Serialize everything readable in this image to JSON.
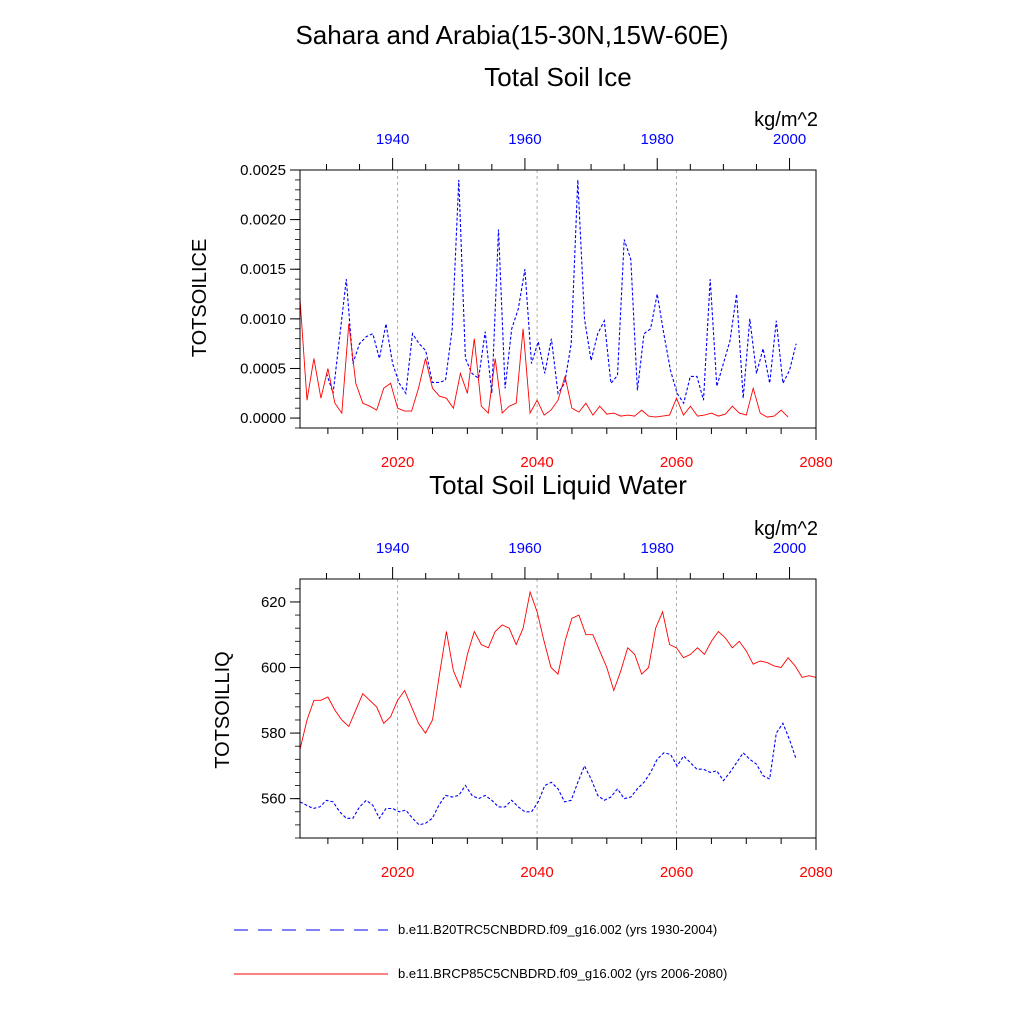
{
  "title": "Sahara and Arabia(15-30N,15W-60E)",
  "colors": {
    "blue": "#0000ff",
    "red": "#ff0000",
    "grid": "#9a9a9a"
  },
  "legend": [
    {
      "label": "b.e11.B20TRC5CNBDRD.f09_g16.002 (yrs 1930-2004)",
      "color": "#0000ff",
      "style": "dashed"
    },
    {
      "label": "b.e11.BRCP85C5CNBDRD.f09_g16.002 (yrs 2006-2080)",
      "color": "#ff0000",
      "style": "solid"
    }
  ],
  "chart_data": [
    {
      "type": "line",
      "title": "Total Soil Ice",
      "units": "kg/m^2",
      "ylabel": "TOTSOILICE",
      "ylim": [
        -0.0001,
        0.0025
      ],
      "yticks": [
        0.0,
        0.0005,
        0.001,
        0.0015,
        0.002,
        0.0025
      ],
      "ytick_labels": [
        "0.0000",
        "0.0005",
        "0.0010",
        "0.0015",
        "0.0020",
        "0.0025"
      ],
      "top_axis": {
        "range": [
          1926,
          2004
        ],
        "ticks": [
          1940,
          1960,
          1980,
          2000
        ],
        "labels": [
          "1940",
          "1960",
          "1980",
          "2000"
        ],
        "color": "#0000ff"
      },
      "bottom_axis": {
        "range": [
          2006,
          2080
        ],
        "ticks": [
          2020,
          2040,
          2060,
          2080
        ],
        "labels": [
          "2020",
          "2040",
          "2060",
          "2080"
        ],
        "color": "#ff0000"
      },
      "grid_x": [
        2020,
        2040,
        2060
      ],
      "series": [
        {
          "name": "b.e11.B20TRC5CNBDRD.f09_g16.002 (yrs 1930-2004)",
          "axis": "top",
          "color": "#0000ff",
          "style": "dashed",
          "x_start": 1930,
          "values": [
            0.00045,
            0.00025,
            0.00082,
            0.0014,
            0.00055,
            0.00075,
            0.00082,
            0.00085,
            0.0006,
            0.00095,
            0.00055,
            0.00035,
            0.00025,
            0.00085,
            0.00075,
            0.00068,
            0.00036,
            0.00036,
            0.00038,
            0.0009,
            0.0024,
            0.0006,
            0.00045,
            0.0004,
            0.00087,
            0.00025,
            0.0019,
            0.0003,
            0.0009,
            0.0011,
            0.0015,
            0.00055,
            0.00077,
            0.00045,
            0.0008,
            0.00025,
            0.00035,
            0.00075,
            0.0024,
            0.001,
            0.00058,
            0.00085,
            0.00098,
            0.00035,
            0.00043,
            0.0018,
            0.0016,
            0.00028,
            0.00085,
            0.0009,
            0.00125,
            0.00085,
            0.00048,
            0.00025,
            0.00015,
            0.00042,
            0.00042,
            0.00018,
            0.0014,
            0.00032,
            0.00055,
            0.00078,
            0.00125,
            0.0002,
            0.001,
            0.00045,
            0.0007,
            0.00035,
            0.00098,
            0.00035,
            0.00048,
            0.00075
          ]
        },
        {
          "name": "b.e11.BRCP85C5CNBDRD.f09_g16.002 (yrs 2006-2080)",
          "axis": "bottom",
          "color": "#ff0000",
          "style": "solid",
          "x_start": 2006,
          "values": [
            0.0012,
            0.00018,
            0.0006,
            0.0002,
            0.0005,
            0.00015,
            5e-05,
            0.00095,
            0.00035,
            0.00015,
            0.00012,
            8e-05,
            0.0003,
            0.00035,
            0.0001,
            7e-05,
            7e-05,
            0.0003,
            0.0006,
            0.0003,
            0.00022,
            0.0002,
            0.0001,
            0.00045,
            0.00025,
            0.0008,
            0.00012,
            5e-05,
            0.0006,
            5e-05,
            0.00012,
            0.00015,
            0.0009,
            5e-05,
            0.00018,
            3e-05,
            8e-05,
            0.00018,
            0.00042,
            0.0001,
            6e-05,
            0.00015,
            3e-05,
            0.00012,
            4e-05,
            5e-05,
            2e-05,
            3e-05,
            2e-05,
            8e-05,
            2e-05,
            1e-05,
            2e-05,
            3e-05,
            0.0002,
            3e-05,
            0.00012,
            2e-05,
            3e-05,
            5e-05,
            2e-05,
            4e-05,
            0.00012,
            5e-05,
            3e-05,
            0.0003,
            5e-05,
            1e-05,
            2e-05,
            8e-05,
            1e-05
          ]
        }
      ]
    },
    {
      "type": "line",
      "title": "Total Soil Liquid Water",
      "units": "kg/m^2",
      "ylabel": "TOTSOILLIQ",
      "ylim": [
        548,
        627
      ],
      "yticks": [
        560,
        580,
        600,
        620
      ],
      "ytick_labels": [
        "560",
        "580",
        "600",
        "620"
      ],
      "top_axis": {
        "range": [
          1926,
          2004
        ],
        "ticks": [
          1940,
          1960,
          1980,
          2000
        ],
        "labels": [
          "1940",
          "1960",
          "1980",
          "2000"
        ],
        "color": "#0000ff"
      },
      "bottom_axis": {
        "range": [
          2006,
          2080
        ],
        "ticks": [
          2020,
          2040,
          2060,
          2080
        ],
        "labels": [
          "2020",
          "2040",
          "2060",
          "2080"
        ],
        "color": "#ff0000"
      },
      "grid_x": [
        2020,
        2040,
        2060
      ],
      "series": [
        {
          "name": "b.e11.B20TRC5CNBDRD.f09_g16.002 (yrs 1930-2004)",
          "axis": "top",
          "color": "#0000ff",
          "style": "dashed",
          "x_start": 1926,
          "values": [
            559,
            558,
            557,
            557.5,
            559.5,
            559,
            556,
            554,
            554,
            557.5,
            559.5,
            558,
            554,
            557,
            557,
            556,
            556.5,
            554,
            552,
            552.5,
            554,
            558,
            561,
            560.5,
            561,
            564,
            561,
            560,
            561,
            559.5,
            557.5,
            557.5,
            559.5,
            557.5,
            556,
            556,
            559,
            564,
            565,
            563,
            559,
            559.5,
            565,
            570,
            566,
            561,
            559.5,
            560.5,
            563,
            560,
            560.5,
            563,
            565,
            568,
            572,
            574,
            573.5,
            570,
            573,
            571,
            569,
            569,
            568,
            568.5,
            565.5,
            568,
            571,
            574,
            572,
            570.5,
            567,
            566,
            580,
            583,
            578,
            572
          ]
        },
        {
          "name": "b.e11.BRCP85C5CNBDRD.f09_g16.002 (yrs 2006-2080)",
          "axis": "bottom",
          "color": "#ff0000",
          "style": "solid",
          "x_start": 2006,
          "values": [
            575,
            584,
            590,
            590,
            591,
            587,
            584,
            582,
            587,
            592,
            590,
            588,
            583,
            585,
            590,
            593,
            588,
            583,
            580,
            584,
            598,
            611,
            599,
            594,
            604,
            611,
            607,
            606,
            611,
            613,
            612,
            607,
            612,
            623,
            617,
            608,
            600,
            598,
            608,
            615,
            616,
            610,
            610,
            605,
            600,
            593,
            599,
            606,
            604,
            598,
            600,
            612,
            617,
            607,
            606,
            603,
            604,
            606,
            604,
            608,
            611,
            609,
            606,
            608,
            605,
            601,
            602,
            601.5,
            600.5,
            600,
            603,
            600.5,
            597,
            597.5,
            597
          ]
        }
      ]
    }
  ]
}
